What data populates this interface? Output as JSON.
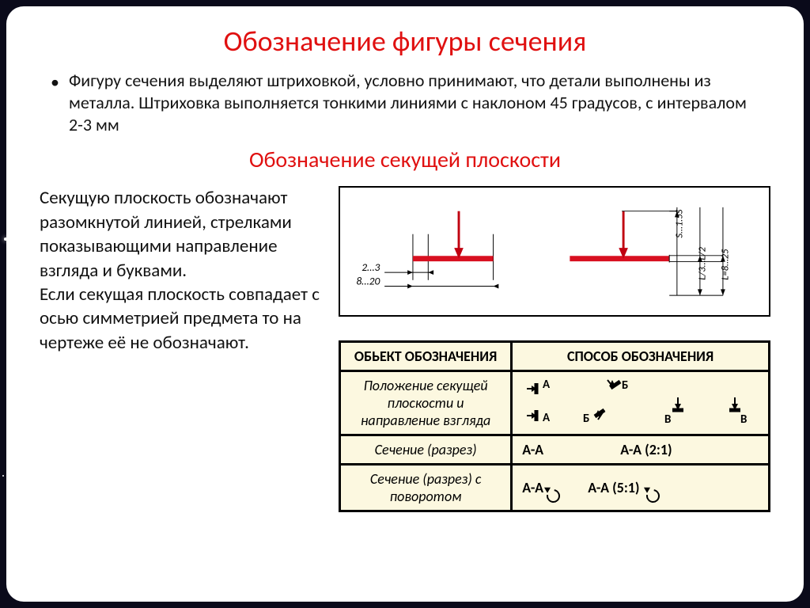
{
  "title": "Обозначение фигуры сечения",
  "bullet": "Фигуру сечения выделяют штриховкой, условно принимают, что детали выполнены из металла. Штриховка выполняется тонкими линиями с наклоном 45 градусов, с интервалом 2-3 мм",
  "subtitle": "Обозначение секущей плоскости",
  "lefttext": "Секущую плоскость обозначают разомкнутой линией, стрелками показывающими направление взгляда и буквами.\nЕсли секущая плоскость совпадает с осью симметрией предмета то на чертеже её не обозначают.",
  "diagram": {
    "dim1": "2…3",
    "dim2": "8…20",
    "dimR1": "S…1.5S",
    "dimR2": "L/3…L/2",
    "dimR3": "L=8…25",
    "thick_color": "#d81020",
    "arrow_color": "#c00010"
  },
  "table": {
    "h1": "ОБЬЕКТ ОБОЗНАЧЕНИЯ",
    "h2": "СПОСОБ  ОБОЗНАЧЕНИЯ",
    "r1_obj": "Положение секущей плоскости и направление взгляда",
    "r1_labA": "А",
    "r1_labB": "Б",
    "r1_labV": "В",
    "r2_obj": "Сечение (разрез)",
    "r2_m1": "А-А",
    "r2_m2": "А-А (2:1)",
    "r3_obj": "Сечение (разрез) с поворотом",
    "r3_m1": "А-А",
    "r3_m2": "А-А (5:1)"
  },
  "colors": {
    "title": "#e01010",
    "bg_cell": "#fcf8e0",
    "text": "#111111",
    "slide_bg": "#ffffff",
    "page_bg": "#0a0a1a"
  },
  "font": {
    "title_size": 36,
    "body_size": 22,
    "subtitle_size": 28
  }
}
